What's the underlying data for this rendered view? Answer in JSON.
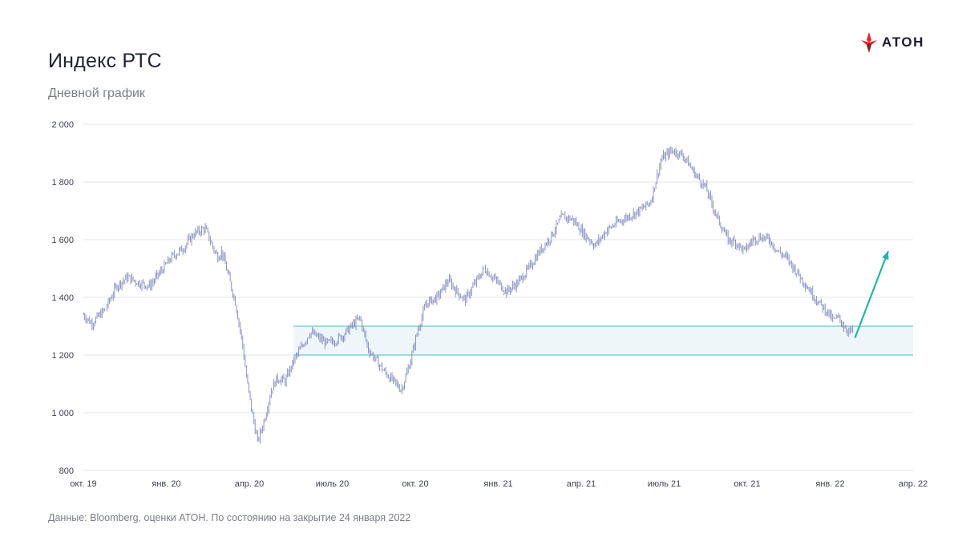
{
  "title": "Индекс РТС",
  "subtitle": "Дневной график",
  "logo": {
    "text": "АТОН",
    "accent_color": "#e8242b"
  },
  "footer": "Данные: Bloomberg, оценки АТОН. По состоянию на закрытие 24 января 2022",
  "chart_data": {
    "type": "line",
    "title": "Индекс РТС",
    "subtitle": "Дневной график",
    "xlabel": "",
    "ylabel": "",
    "ylim": [
      800,
      2000
    ],
    "y_ticks": [
      800,
      1000,
      1200,
      1400,
      1600,
      1800,
      2000
    ],
    "y_tick_labels": [
      "800",
      "1 000",
      "1 200",
      "1 400",
      "1 600",
      "1 800",
      "2 000"
    ],
    "x_tick_labels": [
      "окт. 19",
      "янв. 20",
      "апр. 20",
      "июль 20",
      "окт. 20",
      "янв. 21",
      "апр. 21",
      "июль 21",
      "окт. 21",
      "янв. 22",
      "апр. 22"
    ],
    "x_unit": "months since окт. 19",
    "xlim": [
      0,
      30
    ],
    "grid": true,
    "line_color": "#8a93c4",
    "series": [
      {
        "name": "Индекс РТС (daily)",
        "x": [
          0,
          0.3,
          0.8,
          1.2,
          1.6,
          2.0,
          2.4,
          2.8,
          3.2,
          3.6,
          4.0,
          4.4,
          4.7,
          4.85,
          5.0,
          5.2,
          5.5,
          5.75,
          5.9,
          6.1,
          6.3,
          6.5,
          6.8,
          7.0,
          7.3,
          7.6,
          7.9,
          8.2,
          8.5,
          8.8,
          9.1,
          9.4,
          9.7,
          10.0,
          10.3,
          10.6,
          10.9,
          11.2,
          11.5,
          11.8,
          12.1,
          12.4,
          12.8,
          13.2,
          13.5,
          13.8,
          14.1,
          14.5,
          14.9,
          15.3,
          15.7,
          16.1,
          16.5,
          16.9,
          17.3,
          17.7,
          18.1,
          18.5,
          18.9,
          19.3,
          19.7,
          20.1,
          20.5,
          20.9,
          21.3,
          21.7,
          22.1,
          22.5,
          22.9,
          23.3,
          23.6,
          23.9,
          24.2,
          24.5,
          24.8,
          25.1,
          25.4,
          25.7,
          26.0,
          26.3,
          26.6,
          26.9,
          27.1,
          27.3,
          27.5,
          27.7,
          27.85
        ],
        "values": [
          1340,
          1310,
          1360,
          1440,
          1470,
          1450,
          1440,
          1490,
          1540,
          1570,
          1620,
          1640,
          1570,
          1540,
          1560,
          1490,
          1380,
          1240,
          1120,
          1000,
          900,
          960,
          1080,
          1120,
          1110,
          1180,
          1230,
          1280,
          1260,
          1240,
          1250,
          1270,
          1300,
          1330,
          1220,
          1180,
          1140,
          1110,
          1080,
          1170,
          1290,
          1380,
          1400,
          1460,
          1420,
          1390,
          1440,
          1500,
          1460,
          1420,
          1450,
          1500,
          1560,
          1610,
          1680,
          1670,
          1620,
          1580,
          1630,
          1660,
          1680,
          1700,
          1730,
          1880,
          1910,
          1890,
          1830,
          1780,
          1680,
          1600,
          1590,
          1560,
          1600,
          1610,
          1600,
          1560,
          1540,
          1500,
          1460,
          1420,
          1380,
          1350,
          1320,
          1330,
          1300,
          1280,
          1290
        ]
      }
    ],
    "support_zone": {
      "from": 1200,
      "to": 1300,
      "fill": "#eef6fa",
      "line_color": "#6cc7cf"
    },
    "forecast_arrow": {
      "from": {
        "x": 27.9,
        "y": 1260
      },
      "to": {
        "x": 29.1,
        "y": 1560
      },
      "color": "#2ab3a3"
    }
  }
}
